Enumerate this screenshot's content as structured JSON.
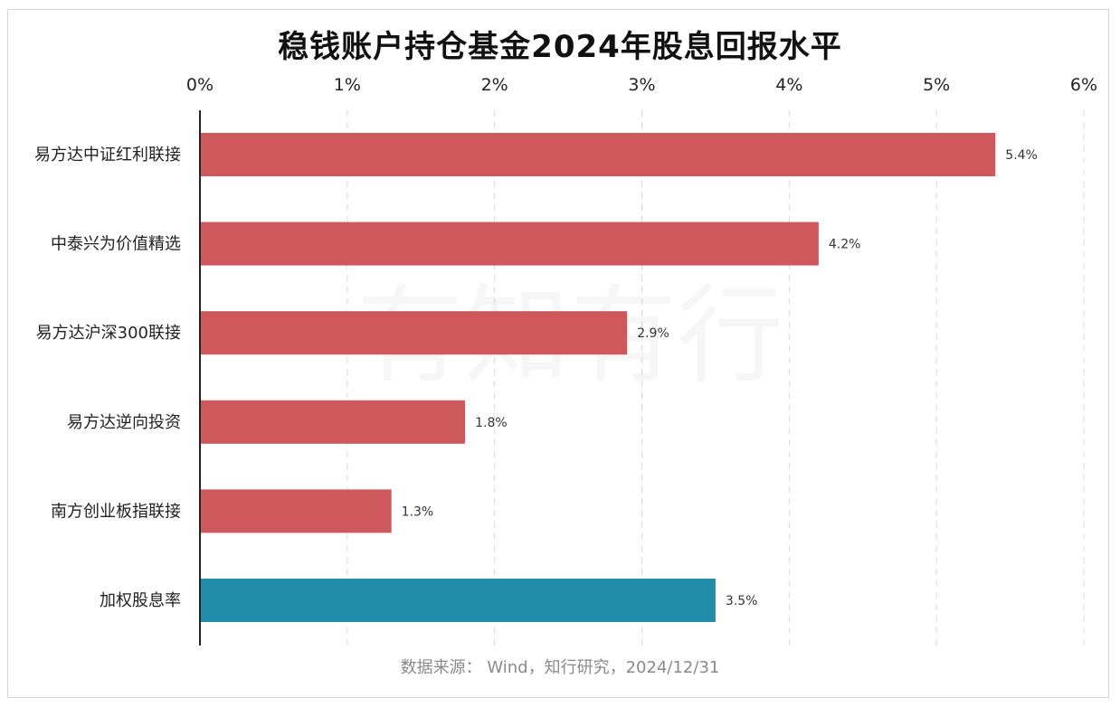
{
  "page": {
    "title": "稳钱账户持仓基金2024年股息回报水平",
    "source": "数据来源： Wind，知行研究，2024/12/31",
    "watermark": "有知有行"
  },
  "colors": {
    "default_bar": "#cf585d",
    "highlight_bar": "#228da8",
    "axis": "#222222",
    "grid": "#d8d8d8"
  },
  "chart_data": {
    "type": "bar",
    "orientation": "horizontal",
    "title": "稳钱账户持仓基金2024年股息回报水平",
    "categories": [
      "易方达中证红利联接",
      "中泰兴为价值精选",
      "易方达沪深300联接",
      "易方达逆向投资",
      "南方创业板指联接",
      "加权股息率"
    ],
    "values": [
      5.4,
      4.2,
      2.9,
      1.8,
      1.3,
      3.5
    ],
    "value_labels": [
      "5.4%",
      "4.2%",
      "2.9%",
      "1.8%",
      "1.3%",
      "3.5%"
    ],
    "highlight_index": 5,
    "xlim": [
      0,
      6
    ],
    "x_ticks": [
      0,
      1,
      2,
      3,
      4,
      5,
      6
    ],
    "x_tick_labels": [
      "0%",
      "1%",
      "2%",
      "3%",
      "4%",
      "5%",
      "6%"
    ],
    "x_axis_position": "top",
    "grid": "vertical-dashed",
    "legend": "none"
  }
}
